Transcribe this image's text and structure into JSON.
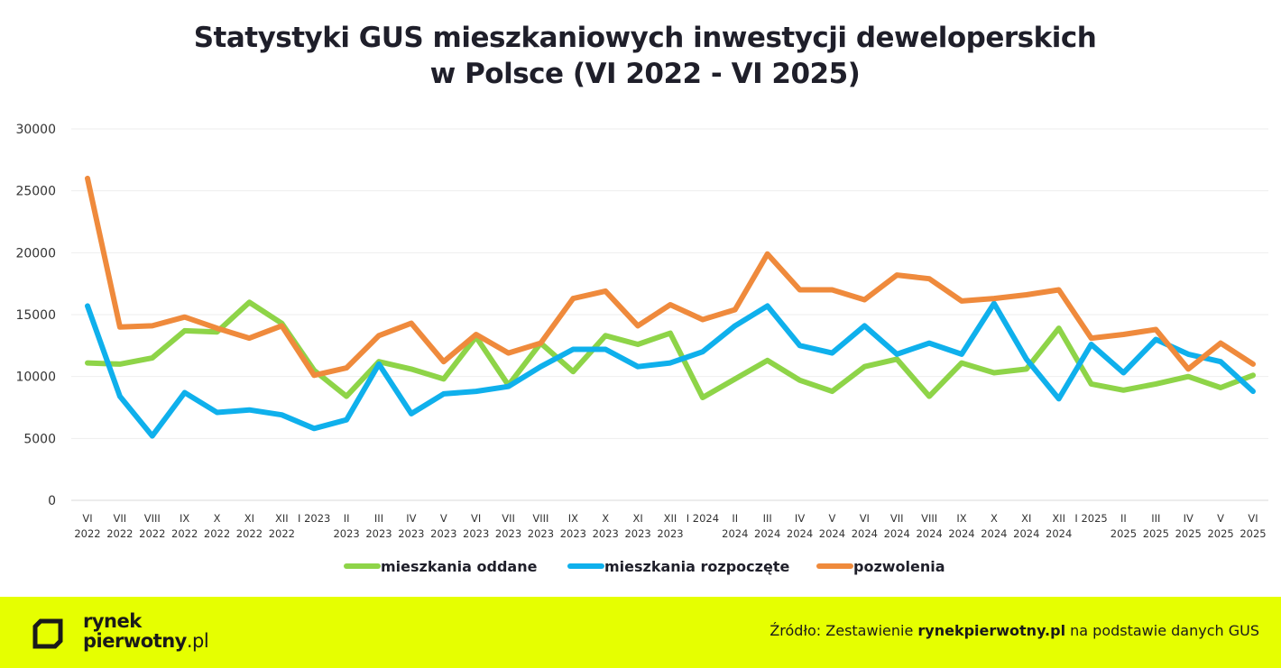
{
  "title_line1": "Statystyki GUS mieszkaniowych inwestycji deweloperskich",
  "title_line2": "w Polsce (VI 2022 - VI 2025)",
  "footer": {
    "logo_line1": "rynek",
    "logo_line2": "pierwotny",
    "logo_suffix": ".pl",
    "source_prefix": "Źródło: Zestawienie ",
    "source_bold": "rynekpierwotny.pl",
    "source_suffix": " na podstawie danych GUS",
    "logo_icon": "square-bracket-logo-icon"
  },
  "colors": {
    "green": "#8ed448",
    "blue": "#0fb0ec",
    "orange": "#ef8a3c",
    "footer_bg": "#e6ff00"
  },
  "chart_data": {
    "type": "line",
    "ylim": [
      0,
      30000
    ],
    "yticks": [
      0,
      5000,
      10000,
      15000,
      20000,
      25000,
      30000
    ],
    "grid": true,
    "legend_position": "bottom",
    "categories": [
      [
        "VI",
        "2022"
      ],
      [
        "VII",
        "2022"
      ],
      [
        "VIII",
        "2022"
      ],
      [
        "IX",
        "2022"
      ],
      [
        "X",
        "2022"
      ],
      [
        "XI",
        "2022"
      ],
      [
        "XII",
        "2022"
      ],
      [
        "I 2023",
        ""
      ],
      [
        "II",
        "2023"
      ],
      [
        "III",
        "2023"
      ],
      [
        "IV",
        "2023"
      ],
      [
        "V",
        "2023"
      ],
      [
        "VI",
        "2023"
      ],
      [
        "VII",
        "2023"
      ],
      [
        "VIII",
        "2023"
      ],
      [
        "IX",
        "2023"
      ],
      [
        "X",
        "2023"
      ],
      [
        "XI",
        "2023"
      ],
      [
        "XII",
        "2023"
      ],
      [
        "I 2024",
        ""
      ],
      [
        "II",
        "2024"
      ],
      [
        "III",
        "2024"
      ],
      [
        "IV",
        "2024"
      ],
      [
        "V",
        "2024"
      ],
      [
        "VI",
        "2024"
      ],
      [
        "VII",
        "2024"
      ],
      [
        "VIII",
        "2024"
      ],
      [
        "IX",
        "2024"
      ],
      [
        "X",
        "2024"
      ],
      [
        "XI",
        "2024"
      ],
      [
        "XII",
        "2024"
      ],
      [
        "I 2025",
        ""
      ],
      [
        "II",
        "2025"
      ],
      [
        "III",
        "2025"
      ],
      [
        "IV",
        "2025"
      ],
      [
        "V",
        "2025"
      ],
      [
        "VI",
        "2025"
      ]
    ],
    "series": [
      {
        "name": "mieszkania oddane",
        "color": "#8ed448",
        "values": [
          11100,
          11000,
          11500,
          13700,
          13600,
          16000,
          14300,
          10500,
          8400,
          11200,
          10600,
          9800,
          13200,
          9300,
          12700,
          10400,
          13300,
          12600,
          13500,
          8300,
          9800,
          11300,
          9700,
          8800,
          10800,
          11400,
          8400,
          11100,
          10300,
          10600,
          13900,
          9400,
          8900,
          9400,
          10000,
          9100,
          10100
        ]
      },
      {
        "name": "mieszkania rozpoczęte",
        "color": "#0fb0ec",
        "values": [
          15700,
          8400,
          5200,
          8700,
          7100,
          7300,
          6900,
          5800,
          6500,
          11000,
          7000,
          8600,
          8800,
          9200,
          10800,
          12200,
          12200,
          10800,
          11100,
          12000,
          14100,
          15700,
          12500,
          11900,
          14100,
          11800,
          12700,
          11800,
          15900,
          11400,
          8200,
          12600,
          10300,
          13000,
          11800,
          11200,
          8800
        ]
      },
      {
        "name": "pozwolenia",
        "color": "#ef8a3c",
        "values": [
          26000,
          14000,
          14100,
          14800,
          13900,
          13100,
          14100,
          10100,
          10700,
          13300,
          14300,
          11200,
          13400,
          11900,
          12700,
          16300,
          16900,
          14100,
          15800,
          14600,
          15400,
          19900,
          17000,
          17000,
          16200,
          18200,
          17900,
          16100,
          16300,
          16600,
          17000,
          13100,
          13400,
          13800,
          10600,
          12700,
          11000
        ]
      }
    ]
  }
}
